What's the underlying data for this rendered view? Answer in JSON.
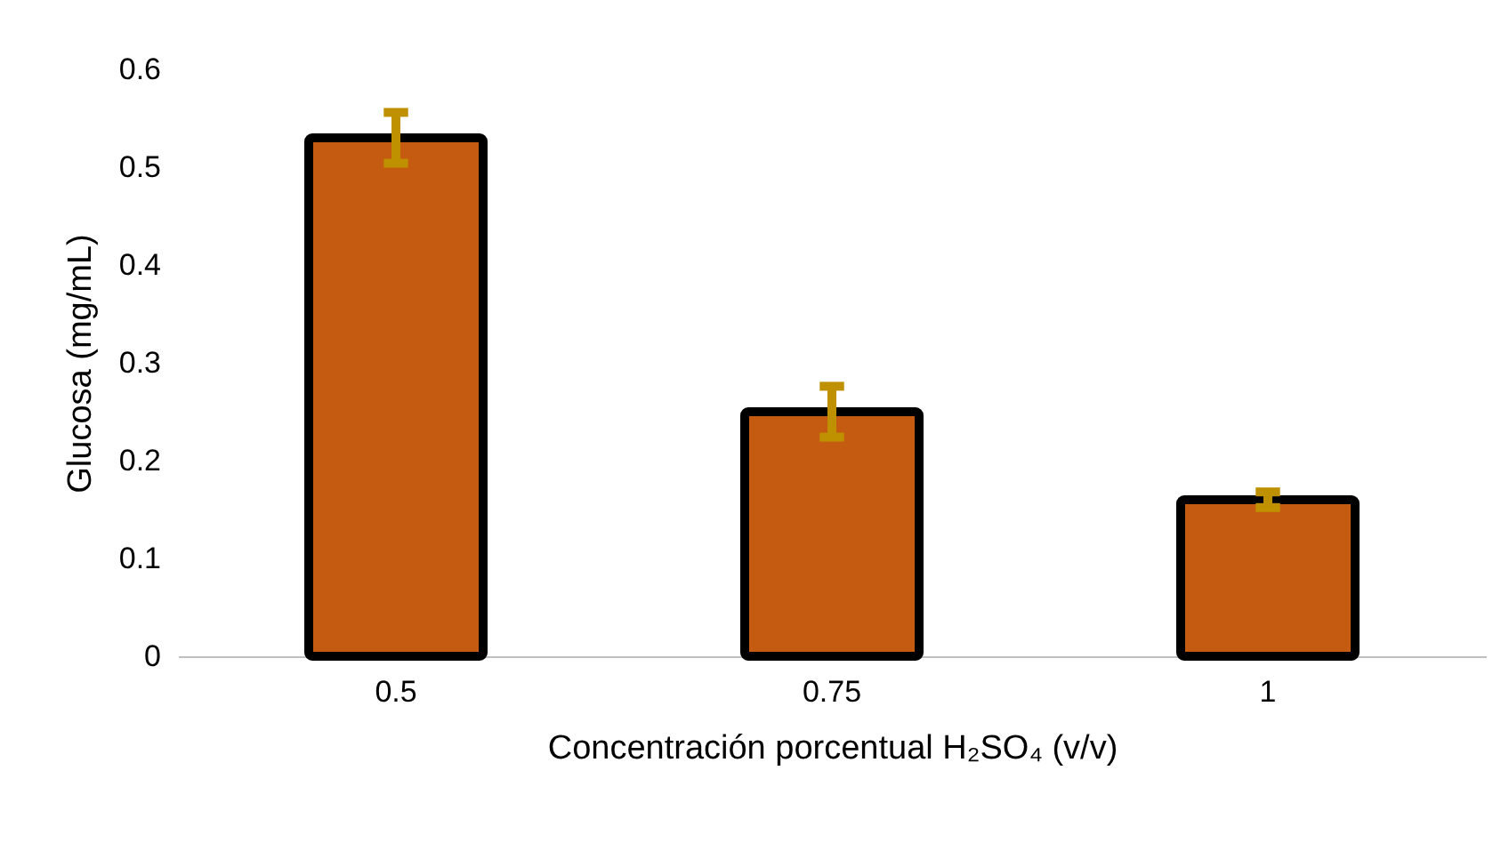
{
  "chart_data": {
    "type": "bar",
    "xlabel": "Concentración porcentual H₂SO₄ (v/v)",
    "ylabel": "Glucosa (mg/mL)",
    "categories": [
      "0.5",
      "0.75",
      "1"
    ],
    "series": [
      {
        "color": "#c55a11",
        "values": [
          0.53,
          0.25,
          0.16
        ],
        "errors": [
          0.026,
          0.026,
          0.008
        ]
      }
    ],
    "ylim": [
      0,
      0.6
    ],
    "yticks": [
      0,
      0.1,
      0.2,
      0.3,
      0.4,
      0.5,
      0.6
    ]
  }
}
